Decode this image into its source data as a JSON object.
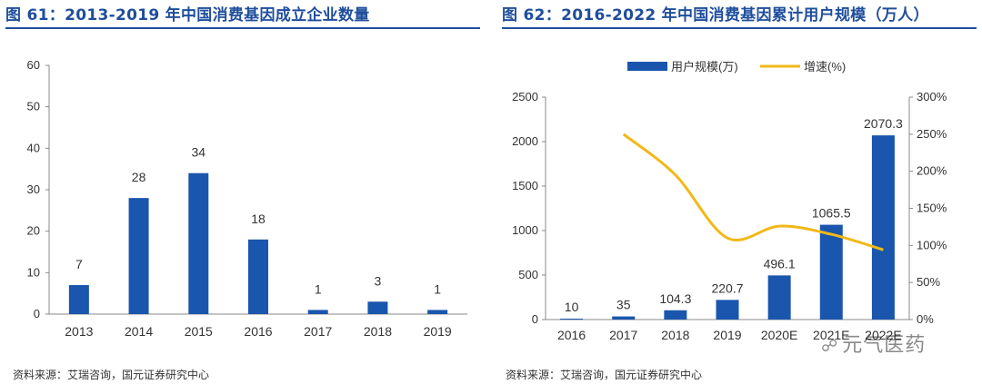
{
  "colors": {
    "bar": "#1a56ad",
    "line": "#f2b817",
    "title": "#1f4e9c",
    "axis": "#8a8a8a",
    "text": "#333333"
  },
  "left_panel": {
    "title": "图 61：2013-2019 年中国消费基因成立企业数量",
    "source": "资料来源：艾瑞咨询，国元证券研究中心"
  },
  "right_panel": {
    "title": "图 62：2016-2022 年中国消费基因累计用户规模（万人）",
    "source": "资料来源：艾瑞咨询，国元证券研究中心"
  },
  "watermark": {
    "icon": "wechat-icon",
    "text": "元气医药"
  },
  "chart_data": [
    {
      "type": "bar",
      "title": "图 61：2013-2019 年中国消费基因成立企业数量",
      "categories": [
        "2013",
        "2014",
        "2015",
        "2016",
        "2017",
        "2018",
        "2019"
      ],
      "values": [
        7,
        28,
        34,
        18,
        1,
        3,
        1
      ],
      "data_labels": [
        "7",
        "28",
        "34",
        "18",
        "1",
        "3",
        "1"
      ],
      "ylim": [
        0,
        60
      ],
      "yticks": [
        0,
        10,
        20,
        30,
        40,
        50,
        60
      ],
      "ytick_labels": [
        "0",
        "10",
        "20",
        "30",
        "40",
        "50",
        "60"
      ],
      "xlabel": "",
      "ylabel": "",
      "grid": false
    },
    {
      "type": "bar",
      "title": "图 62：2016-2022 年中国消费基因累计用户规模（万人）",
      "categories": [
        "2016",
        "2017",
        "2018",
        "2019",
        "2020E",
        "2021E",
        "2022E"
      ],
      "tick_labels": [
        "2016",
        "2017",
        "2018",
        "2019",
        "2020E",
        "2021E",
        "2022E"
      ],
      "series": [
        {
          "name": "用户规模(万)",
          "type": "bar",
          "axis": "left",
          "values": [
            10,
            35,
            104.3,
            220.7,
            496.1,
            1065.5,
            2070.3
          ],
          "data_labels": [
            "10",
            "35",
            "104.3",
            "220.7",
            "496.1",
            "1065.5",
            "2070.3"
          ]
        },
        {
          "name": "增速(%)",
          "type": "line",
          "axis": "right",
          "values": [
            null,
            250,
            195,
            110,
            126,
            115,
            94
          ]
        }
      ],
      "ylim": [
        0,
        2500
      ],
      "yticks": [
        0,
        500,
        1000,
        1500,
        2000,
        2500
      ],
      "ytick_labels": [
        "0",
        "500",
        "1000",
        "1500",
        "2000",
        "2500"
      ],
      "y2lim": [
        0,
        300
      ],
      "y2ticks": [
        0,
        50,
        100,
        150,
        200,
        250,
        300
      ],
      "y2tick_labels": [
        "0%",
        "50%",
        "100%",
        "150%",
        "200%",
        "250%",
        "300%"
      ],
      "legend": [
        "用户规模(万)",
        "增速(%)"
      ],
      "legend_position": "top",
      "grid": false
    }
  ]
}
